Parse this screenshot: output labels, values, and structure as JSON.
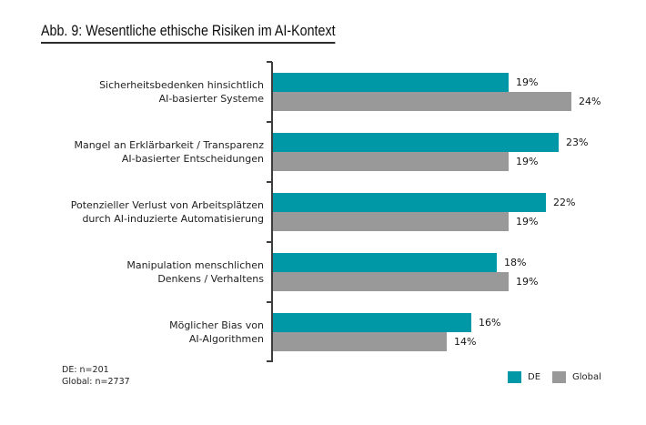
{
  "title": "Abb. 9: Wesentliche ethische Risiken im AI-Kontext",
  "footnote": {
    "line1": "DE: n=201",
    "line2": "Global: n=2737"
  },
  "colors": {
    "de_teal": "#0097A6",
    "global_gray": "#999999",
    "axis": "#3d3d3d",
    "text": "#1f1f1f"
  },
  "legend": {
    "position": "bottom-right",
    "items": [
      "DE",
      "Global"
    ]
  },
  "chart_data": {
    "type": "bar",
    "orientation": "horizontal",
    "title": "Abb. 9: Wesentliche ethische Risiken im AI-Kontext",
    "xlabel": "",
    "ylabel": "",
    "xlim": [
      0,
      25
    ],
    "grid": false,
    "value_suffix": "%",
    "categories": [
      "Sicherheitsbedenken hinsichtlich\nAI-basierter Systeme",
      "Mangel an Erklärbarkeit / Transparenz\nAI-basierter Entscheidungen",
      "Potenzieller Verlust von Arbeitsplätzen\ndurch AI-induzierte Automatisierung",
      "Manipulation menschlichen\nDenkens / Verhaltens",
      "Möglicher Bias von\nAI-Algorithmen"
    ],
    "series": [
      {
        "name": "DE",
        "color": "#0097A6",
        "values": [
          19,
          23,
          22,
          18,
          16
        ],
        "labels": [
          "19%",
          "23%",
          "22%",
          "18%",
          "16%"
        ]
      },
      {
        "name": "Global",
        "color": "#999999",
        "values": [
          24,
          19,
          19,
          19,
          14
        ],
        "labels": [
          "24%",
          "19%",
          "19%",
          "19%",
          "14%"
        ]
      }
    ],
    "sample_sizes": {
      "DE": 201,
      "Global": 2737
    }
  }
}
